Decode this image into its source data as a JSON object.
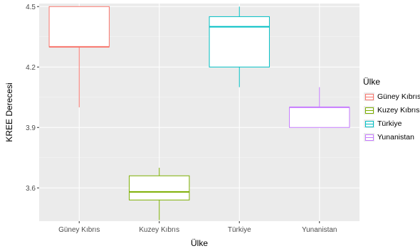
{
  "chart_data": {
    "type": "boxplot",
    "xlabel": "Ülke",
    "ylabel": "KREE Derecesi",
    "ylim": [
      3.435,
      4.515
    ],
    "yticks": [
      3.6,
      3.9,
      4.2,
      4.5
    ],
    "grid": true,
    "legend_position": "right",
    "legend_title": "Ülke",
    "categories": [
      "Güney Kıbrıs",
      "Kuzey Kıbrıs",
      "Türkiye",
      "Yunanistan"
    ],
    "colors": [
      "#F8766D",
      "#7CAE00",
      "#00BFC4",
      "#C77CFF"
    ],
    "series": [
      {
        "name": "Güney Kıbrıs",
        "min": 4.0,
        "q1": 4.3,
        "median": 4.3,
        "q3": 4.5,
        "max": 4.5
      },
      {
        "name": "Kuzey Kıbrıs",
        "min": 3.44,
        "q1": 3.54,
        "median": 3.58,
        "q3": 3.66,
        "max": 3.7
      },
      {
        "name": "Türkiye",
        "min": 4.1,
        "q1": 4.2,
        "median": 4.4,
        "q3": 4.45,
        "max": 4.5
      },
      {
        "name": "Yunanistan",
        "min": 3.9,
        "q1": 3.9,
        "median": 4.0,
        "q3": 4.0,
        "max": 4.1
      }
    ]
  }
}
